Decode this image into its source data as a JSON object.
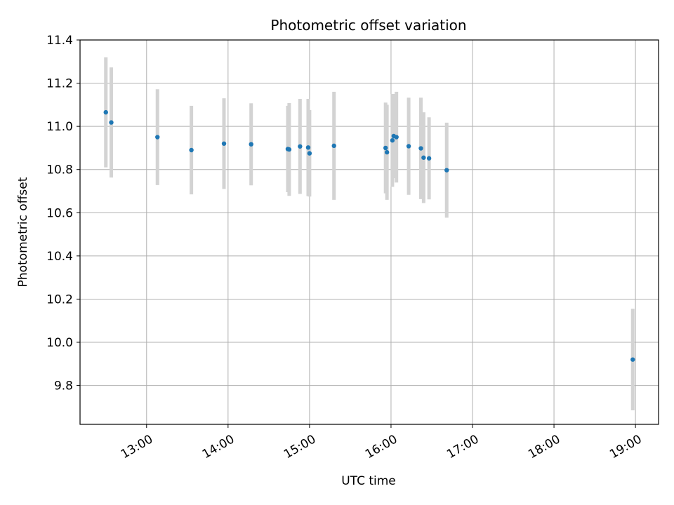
{
  "chart_data": {
    "type": "scatter",
    "title": "Photometric offset variation",
    "xlabel": "UTC time",
    "ylabel": "Photometric offset",
    "x_is_time": true,
    "xlim": [
      "12:11",
      "19:17"
    ],
    "ylim": [
      9.62,
      11.4
    ],
    "yticks": [
      "9.8",
      "10.0",
      "10.2",
      "10.4",
      "10.6",
      "10.8",
      "11.0",
      "11.2",
      "11.4"
    ],
    "xticks": [
      "13:00",
      "14:00",
      "15:00",
      "16:00",
      "17:00",
      "18:00",
      "19:00"
    ],
    "grid": true,
    "marker_color": "#1f77b4",
    "errorbar_color": "#d3d3d3",
    "series": [
      {
        "points": [
          {
            "time": "12:30",
            "y": 11.065,
            "err": 0.255
          },
          {
            "time": "12:34",
            "y": 11.018,
            "err": 0.255
          },
          {
            "time": "13:08",
            "y": 10.95,
            "err": 0.222
          },
          {
            "time": "13:33",
            "y": 10.89,
            "err": 0.205
          },
          {
            "time": "13:57",
            "y": 10.92,
            "err": 0.21
          },
          {
            "time": "14:17",
            "y": 10.917,
            "err": 0.19
          },
          {
            "time": "14:44",
            "y": 10.895,
            "err": 0.2
          },
          {
            "time": "14:45",
            "y": 10.893,
            "err": 0.215
          },
          {
            "time": "14:53",
            "y": 10.907,
            "err": 0.22
          },
          {
            "time": "14:59",
            "y": 10.902,
            "err": 0.225
          },
          {
            "time": "15:00",
            "y": 10.875,
            "err": 0.2
          },
          {
            "time": "15:18",
            "y": 10.91,
            "err": 0.25
          },
          {
            "time": "15:56",
            "y": 10.9,
            "err": 0.21
          },
          {
            "time": "15:57",
            "y": 10.88,
            "err": 0.22
          },
          {
            "time": "16:01",
            "y": 10.935,
            "err": 0.215
          },
          {
            "time": "16:02",
            "y": 10.955,
            "err": 0.195
          },
          {
            "time": "16:04",
            "y": 10.95,
            "err": 0.21
          },
          {
            "time": "16:13",
            "y": 10.908,
            "err": 0.225
          },
          {
            "time": "16:22",
            "y": 10.898,
            "err": 0.235
          },
          {
            "time": "16:24",
            "y": 10.855,
            "err": 0.21
          },
          {
            "time": "16:28",
            "y": 10.852,
            "err": 0.19
          },
          {
            "time": "16:41",
            "y": 10.797,
            "err": 0.22
          },
          {
            "time": "18:58",
            "y": 9.92,
            "err": 0.235
          }
        ]
      }
    ]
  }
}
